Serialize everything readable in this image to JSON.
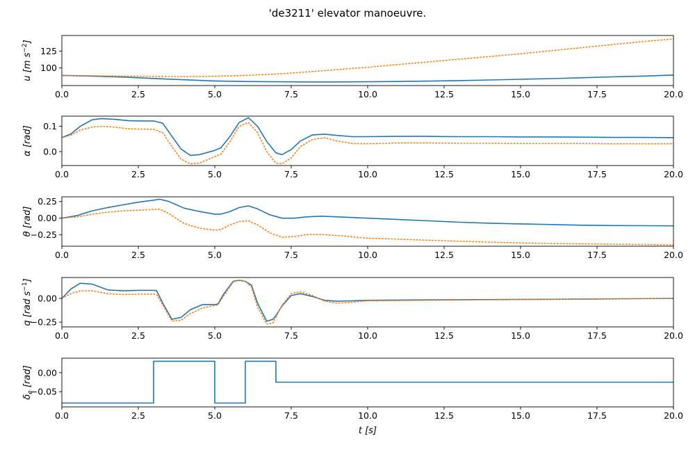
{
  "figure": {
    "title": "'de3211' elevator manoeuvre."
  },
  "colors": {
    "series_solid": "#1f77b4",
    "series_dotted": "#ff7f0e",
    "axes": "#000000",
    "background": "#ffffff"
  },
  "chart_data": [
    {
      "type": "line",
      "ylabel": "u [m s^-2]",
      "ylabel_parts": {
        "base": "u [m s",
        "sup": "−2",
        "tail": "]"
      },
      "xlim": [
        0,
        20
      ],
      "ylim": [
        74,
        148
      ],
      "xticks": [
        0,
        2.5,
        5,
        7.5,
        10,
        12.5,
        15,
        17.5,
        20
      ],
      "xtick_labels": [
        "0.0",
        "2.5",
        "5.0",
        "7.5",
        "10.0",
        "12.5",
        "15.0",
        "17.5",
        "20.0"
      ],
      "yticks": [
        100,
        125
      ],
      "ytick_labels": [
        "100",
        "125"
      ],
      "grid": false,
      "series": [
        {
          "style": "solid",
          "x": [
            0,
            1,
            2,
            3,
            4,
            5,
            6,
            7,
            8,
            9,
            10,
            11,
            12,
            13,
            14,
            15,
            16,
            17,
            18,
            19,
            20
          ],
          "y": [
            89,
            88,
            86.5,
            84.5,
            82.5,
            80.8,
            80,
            79.5,
            79.3,
            79.3,
            79.5,
            80,
            80.6,
            81.3,
            82.2,
            83.2,
            84.3,
            85.5,
            86.8,
            88,
            89.5
          ]
        },
        {
          "style": "dotted",
          "x": [
            0,
            1,
            2,
            3,
            4,
            5,
            6,
            7,
            8,
            9,
            10,
            11,
            12,
            13,
            14,
            15,
            16,
            17,
            18,
            19,
            20
          ],
          "y": [
            89,
            88.5,
            88,
            87.5,
            87.3,
            87.8,
            89,
            91,
            94,
            97.5,
            101,
            105,
            109,
            113,
            117,
            121,
            125.5,
            130,
            134.5,
            139,
            143
          ]
        }
      ]
    },
    {
      "type": "line",
      "ylabel": "α [rad]",
      "ylabel_parts": {
        "base": "α [rad]",
        "sup": "",
        "tail": ""
      },
      "xlim": [
        0,
        20
      ],
      "ylim": [
        -0.055,
        0.14
      ],
      "xticks": [
        0,
        2.5,
        5,
        7.5,
        10,
        12.5,
        15,
        17.5,
        20
      ],
      "xtick_labels": [
        "0.0",
        "2.5",
        "5.0",
        "7.5",
        "10.0",
        "12.5",
        "15.0",
        "17.5",
        "20.0"
      ],
      "yticks": [
        0,
        0.1
      ],
      "ytick_labels": [
        "0.0",
        "0.1"
      ],
      "grid": false,
      "series": [
        {
          "style": "solid",
          "x": [
            0,
            0.3,
            0.6,
            1.0,
            1.3,
            1.7,
            2.2,
            2.7,
            3.0,
            3.3,
            3.6,
            3.9,
            4.2,
            4.5,
            4.8,
            5.0,
            5.2,
            5.5,
            5.8,
            6.1,
            6.4,
            6.7,
            7.0,
            7.2,
            7.5,
            7.8,
            8.2,
            8.6,
            9.0,
            9.5,
            10,
            11,
            12,
            13,
            14,
            15,
            16,
            17,
            18,
            19,
            20
          ],
          "y": [
            0.055,
            0.07,
            0.1,
            0.126,
            0.13,
            0.128,
            0.122,
            0.121,
            0.121,
            0.112,
            0.06,
            0.01,
            -0.015,
            -0.012,
            -0.002,
            0.005,
            0.015,
            0.06,
            0.115,
            0.134,
            0.1,
            0.04,
            -0.005,
            -0.012,
            0.008,
            0.042,
            0.066,
            0.069,
            0.064,
            0.059,
            0.059,
            0.06,
            0.06,
            0.059,
            0.059,
            0.058,
            0.058,
            0.057,
            0.056,
            0.056,
            0.055
          ]
        },
        {
          "style": "dotted",
          "x": [
            0,
            0.3,
            0.6,
            1.0,
            1.3,
            1.7,
            2.2,
            2.7,
            3.0,
            3.3,
            3.6,
            3.9,
            4.2,
            4.5,
            4.8,
            5.0,
            5.2,
            5.5,
            5.8,
            6.1,
            6.4,
            6.7,
            7.0,
            7.2,
            7.5,
            7.8,
            8.2,
            8.6,
            9.0,
            9.5,
            10,
            11,
            12,
            13,
            14,
            15,
            16,
            17,
            18,
            19,
            20
          ],
          "y": [
            0.055,
            0.065,
            0.085,
            0.097,
            0.1,
            0.097,
            0.09,
            0.089,
            0.088,
            0.075,
            0.02,
            -0.03,
            -0.048,
            -0.045,
            -0.03,
            -0.02,
            -0.01,
            0.04,
            0.1,
            0.115,
            0.075,
            0.0,
            -0.045,
            -0.048,
            -0.025,
            0.02,
            0.048,
            0.055,
            0.042,
            0.032,
            0.031,
            0.034,
            0.034,
            0.033,
            0.033,
            0.032,
            0.032,
            0.032,
            0.031,
            0.031,
            0.031
          ]
        }
      ]
    },
    {
      "type": "line",
      "ylabel": "θ [rad]",
      "ylabel_parts": {
        "base": "θ [rad]",
        "sup": "",
        "tail": ""
      },
      "xlim": [
        0,
        20
      ],
      "ylim": [
        -0.42,
        0.32
      ],
      "xticks": [
        0,
        2.5,
        5,
        7.5,
        10,
        12.5,
        15,
        17.5,
        20
      ],
      "xtick_labels": [
        "0.0",
        "2.5",
        "5.0",
        "7.5",
        "10.0",
        "12.5",
        "15.0",
        "17.5",
        "20.0"
      ],
      "yticks": [
        -0.25,
        0,
        0.25
      ],
      "ytick_labels": [
        "−0.25",
        "0.00",
        "0.25"
      ],
      "grid": false,
      "series": [
        {
          "style": "solid",
          "x": [
            0,
            0.5,
            1.0,
            1.5,
            2.0,
            2.5,
            3.0,
            3.2,
            3.5,
            4.0,
            4.5,
            5.0,
            5.2,
            5.5,
            5.8,
            6.1,
            6.4,
            6.8,
            7.2,
            7.6,
            8.0,
            8.5,
            9.0,
            10,
            11,
            12,
            13,
            14,
            15,
            16,
            17,
            18,
            19,
            20
          ],
          "y": [
            0.0,
            0.04,
            0.11,
            0.16,
            0.2,
            0.24,
            0.27,
            0.285,
            0.25,
            0.15,
            0.1,
            0.06,
            0.06,
            0.1,
            0.16,
            0.185,
            0.14,
            0.05,
            0.0,
            0.0,
            0.02,
            0.03,
            0.02,
            0.0,
            -0.02,
            -0.04,
            -0.06,
            -0.075,
            -0.085,
            -0.095,
            -0.105,
            -0.11,
            -0.113,
            -0.115
          ]
        },
        {
          "style": "dotted",
          "x": [
            0,
            0.5,
            1.0,
            1.5,
            2.0,
            2.5,
            3.0,
            3.2,
            3.5,
            4.0,
            4.5,
            5.0,
            5.2,
            5.5,
            5.8,
            6.1,
            6.4,
            6.8,
            7.2,
            7.6,
            8.0,
            8.5,
            9.0,
            10,
            11,
            12,
            13,
            14,
            15,
            16,
            17,
            18,
            19,
            20
          ],
          "y": [
            0.0,
            0.02,
            0.06,
            0.09,
            0.11,
            0.12,
            0.13,
            0.135,
            0.07,
            -0.08,
            -0.15,
            -0.18,
            -0.17,
            -0.1,
            -0.05,
            -0.04,
            -0.1,
            -0.22,
            -0.285,
            -0.275,
            -0.245,
            -0.245,
            -0.26,
            -0.3,
            -0.315,
            -0.33,
            -0.345,
            -0.36,
            -0.37,
            -0.38,
            -0.385,
            -0.39,
            -0.395,
            -0.4
          ]
        }
      ]
    },
    {
      "type": "line",
      "ylabel": "q [rad s^-1]",
      "ylabel_parts": {
        "base": "q [rad s",
        "sup": "−1",
        "tail": "]"
      },
      "xlim": [
        0,
        20
      ],
      "ylim": [
        -0.3,
        0.22
      ],
      "xticks": [
        0,
        2.5,
        5,
        7.5,
        10,
        12.5,
        15,
        17.5,
        20
      ],
      "xtick_labels": [
        "0.0",
        "2.5",
        "5.0",
        "7.5",
        "10.0",
        "12.5",
        "15.0",
        "17.5",
        "20.0"
      ],
      "yticks": [
        -0.25,
        0
      ],
      "ytick_labels": [
        "−0.25",
        "0.00"
      ],
      "grid": false,
      "series": [
        {
          "style": "solid",
          "x": [
            0,
            0.3,
            0.6,
            1.0,
            1.5,
            2.0,
            2.5,
            3.0,
            3.1,
            3.3,
            3.6,
            3.9,
            4.2,
            4.6,
            5.0,
            5.1,
            5.3,
            5.6,
            5.8,
            6.0,
            6.2,
            6.4,
            6.7,
            6.9,
            7.0,
            7.2,
            7.5,
            7.8,
            8.2,
            8.6,
            9.0,
            9.5,
            10,
            12,
            14,
            16,
            18,
            20
          ],
          "y": [
            0.0,
            0.1,
            0.16,
            0.15,
            0.09,
            0.08,
            0.085,
            0.085,
            0.08,
            -0.05,
            -0.22,
            -0.2,
            -0.12,
            -0.065,
            -0.065,
            -0.06,
            0.05,
            0.18,
            0.19,
            0.18,
            0.14,
            -0.05,
            -0.24,
            -0.22,
            -0.18,
            -0.08,
            0.03,
            0.05,
            0.02,
            -0.02,
            -0.03,
            -0.025,
            -0.02,
            -0.015,
            -0.012,
            -0.009,
            -0.005,
            0.0
          ]
        },
        {
          "style": "dotted",
          "x": [
            0,
            0.3,
            0.6,
            1.0,
            1.5,
            2.0,
            2.5,
            3.0,
            3.1,
            3.3,
            3.6,
            3.9,
            4.2,
            4.6,
            5.0,
            5.1,
            5.3,
            5.6,
            5.8,
            6.0,
            6.2,
            6.4,
            6.7,
            6.9,
            7.0,
            7.2,
            7.5,
            7.8,
            8.2,
            8.6,
            9.0,
            9.5,
            10,
            12,
            14,
            16,
            18,
            20
          ],
          "y": [
            0.0,
            0.05,
            0.08,
            0.08,
            0.05,
            0.04,
            0.045,
            0.045,
            0.04,
            -0.07,
            -0.24,
            -0.23,
            -0.16,
            -0.1,
            -0.075,
            -0.07,
            0.03,
            0.17,
            0.195,
            0.18,
            0.12,
            -0.09,
            -0.27,
            -0.26,
            -0.2,
            -0.07,
            0.05,
            0.07,
            0.03,
            -0.03,
            -0.05,
            -0.04,
            -0.025,
            -0.02,
            -0.015,
            -0.01,
            -0.005,
            0.0
          ]
        }
      ]
    },
    {
      "type": "line",
      "ylabel": "δe [rad]",
      "ylabel_parts": {
        "base": "δ",
        "sub": "e",
        "tail": " [rad]"
      },
      "xlabel": "t [s]",
      "xlim": [
        0,
        20
      ],
      "ylim": [
        -0.09,
        0.038
      ],
      "xticks": [
        0,
        2.5,
        5,
        7.5,
        10,
        12.5,
        15,
        17.5,
        20
      ],
      "xtick_labels": [
        "0.0",
        "2.5",
        "5.0",
        "7.5",
        "10.0",
        "12.5",
        "15.0",
        "17.5",
        "20.0"
      ],
      "yticks": [
        -0.05,
        0
      ],
      "ytick_labels": [
        "−0.05",
        "0.00"
      ],
      "grid": false,
      "series": [
        {
          "style": "solid",
          "x": [
            0,
            3.0,
            3.0,
            5.0,
            5.0,
            6.0,
            6.0,
            7.0,
            7.0,
            20
          ],
          "y": [
            -0.08,
            -0.08,
            0.03,
            0.03,
            -0.08,
            -0.08,
            0.03,
            0.03,
            -0.025,
            -0.025
          ]
        }
      ]
    }
  ]
}
